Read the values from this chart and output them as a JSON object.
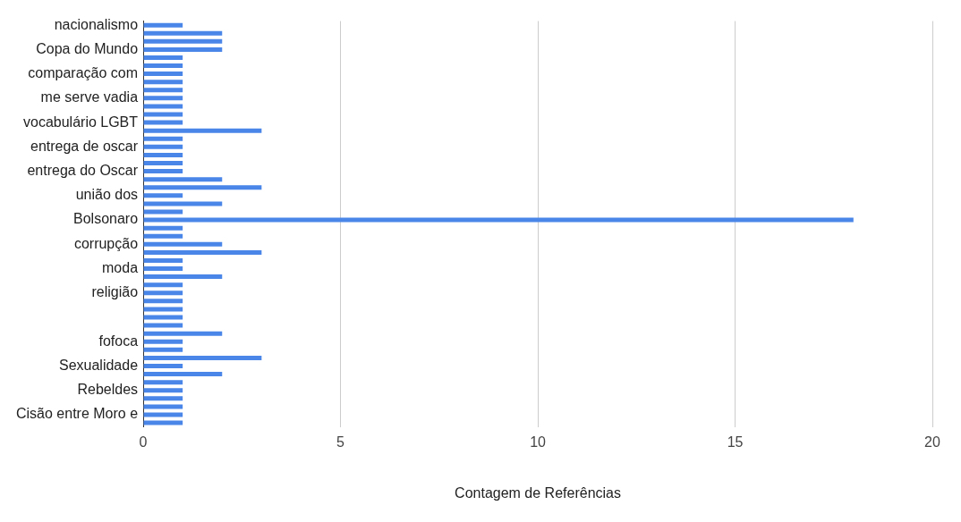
{
  "chart_data": {
    "type": "bar",
    "orientation": "horizontal",
    "xlabel": "Contagem de Referências",
    "categories": [
      "nacionalismo",
      null,
      null,
      "Copa do Mundo",
      null,
      null,
      "comparação com",
      null,
      null,
      "me serve vadia",
      null,
      null,
      "vocabulário LGBT",
      null,
      null,
      "entrega de oscar",
      null,
      null,
      "entrega do Oscar",
      null,
      null,
      "união dos",
      null,
      null,
      "Bolsonaro",
      null,
      null,
      "corrupção",
      null,
      null,
      "moda",
      null,
      null,
      "religião",
      null,
      null,
      null,
      null,
      null,
      "fofoca",
      null,
      null,
      "Sexualidade",
      null,
      null,
      "Rebeldes",
      null,
      null,
      "Cisão entre Moro e",
      null
    ],
    "values": [
      1,
      2,
      2,
      2,
      1,
      1,
      1,
      1,
      1,
      1,
      1,
      1,
      1,
      3,
      1,
      1,
      1,
      1,
      1,
      2,
      3,
      1,
      2,
      1,
      18,
      1,
      1,
      2,
      3,
      1,
      1,
      2,
      1,
      1,
      1,
      1,
      1,
      1,
      2,
      1,
      1,
      3,
      1,
      2,
      1,
      1,
      1,
      1,
      1,
      1
    ],
    "color": "#4a86e8",
    "xlim": [
      0,
      20
    ],
    "xticks": [
      0,
      5,
      10,
      15,
      20
    ],
    "grid": "x",
    "legend": false
  }
}
